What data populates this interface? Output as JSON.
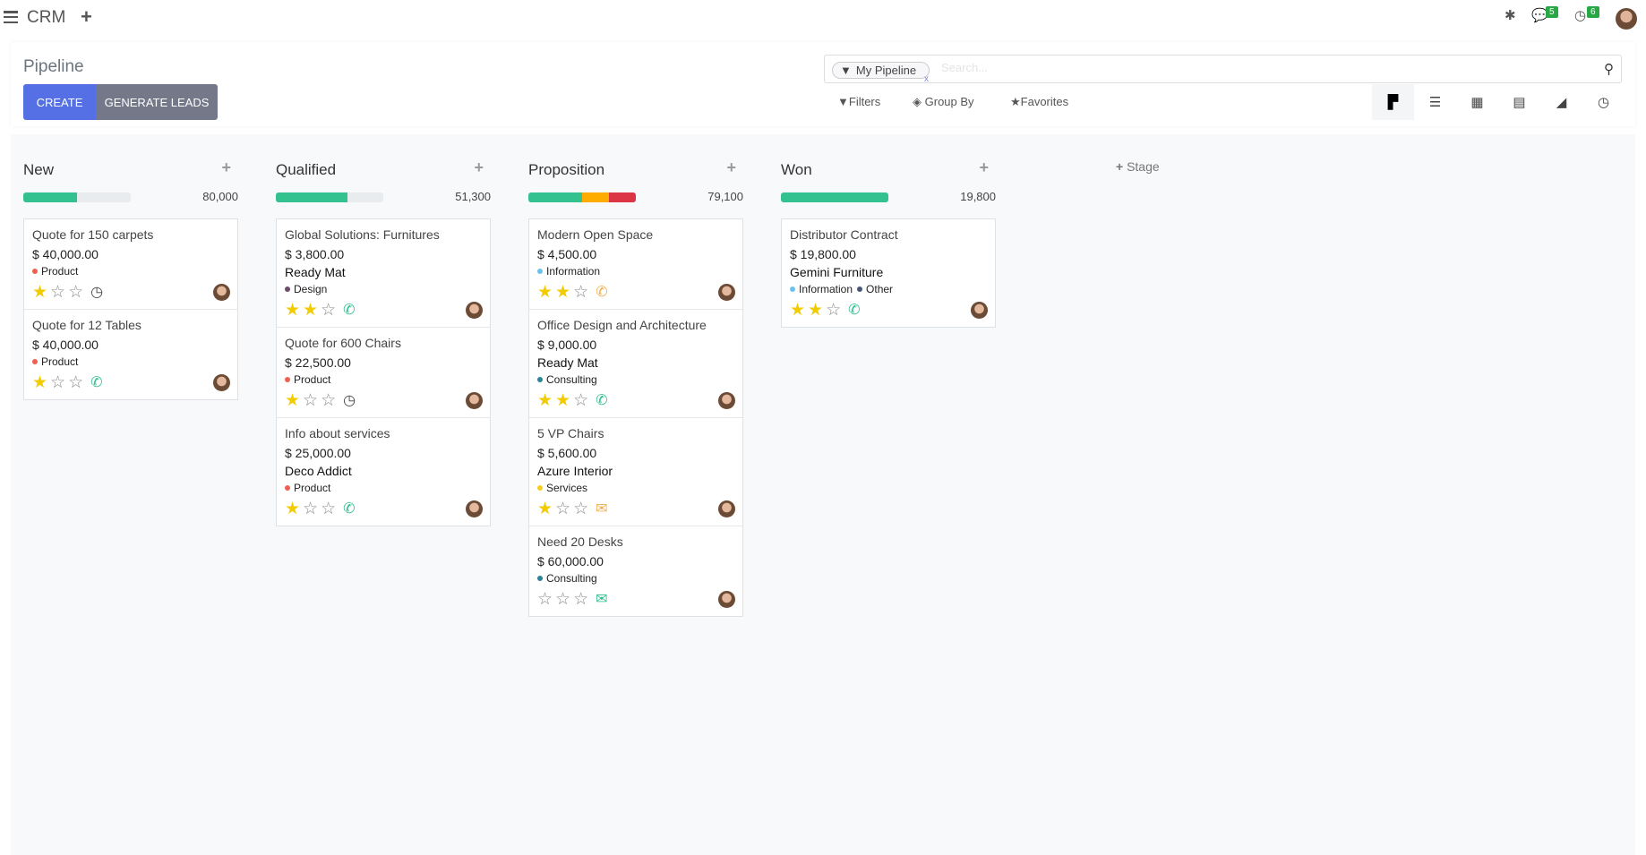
{
  "topbar": {
    "app_name": "CRM",
    "new_icon": "plus-icon",
    "bug_icon": "bug-icon",
    "messages_count": "5",
    "activities_count": "6"
  },
  "control": {
    "title": "Pipeline",
    "create_label": "CREATE",
    "generate_label": "GENERATE LEADS",
    "facet": "My Pipeline",
    "facet_remove": "x",
    "search_placeholder": "Search...",
    "filters": "Filters",
    "group_by": "Group By",
    "favorites": "Favorites",
    "views": [
      "kanban",
      "list",
      "calendar",
      "pivot",
      "graph",
      "activity"
    ],
    "active_view": "kanban"
  },
  "colors": {
    "green": "#33c28f",
    "orange": "#ffac00",
    "red": "#dc3545",
    "primary": "#5470e4"
  },
  "columns": [
    {
      "title": "New",
      "sum": "80,000",
      "progress": [
        {
          "color": "#33c28f",
          "pct": 50
        }
      ],
      "cards": [
        {
          "name": "Quote for 150 carpets",
          "amount": "$ 40,000.00",
          "company": "",
          "tags": [
            {
              "label": "Product",
              "color": "#f06050"
            }
          ],
          "stars": 1,
          "activity": "clock"
        },
        {
          "name": "Quote for 12 Tables",
          "amount": "$ 40,000.00",
          "company": "",
          "tags": [
            {
              "label": "Product",
              "color": "#f06050"
            }
          ],
          "stars": 1,
          "activity": "phone-green"
        }
      ]
    },
    {
      "title": "Qualified",
      "sum": "51,300",
      "progress": [
        {
          "color": "#33c28f",
          "pct": 67
        }
      ],
      "cards": [
        {
          "name": "Global Solutions: Furnitures",
          "amount": "$ 3,800.00",
          "company": "Ready Mat",
          "tags": [
            {
              "label": "Design",
              "color": "#6c4b6b"
            }
          ],
          "stars": 2,
          "activity": "phone-green"
        },
        {
          "name": "Quote for 600 Chairs",
          "amount": "$ 22,500.00",
          "company": "",
          "tags": [
            {
              "label": "Product",
              "color": "#f06050"
            }
          ],
          "stars": 1,
          "activity": "clock"
        },
        {
          "name": "Info about services",
          "amount": "$ 25,000.00",
          "company": "Deco Addict",
          "tags": [
            {
              "label": "Product",
              "color": "#f06050"
            }
          ],
          "stars": 1,
          "activity": "phone-green"
        }
      ]
    },
    {
      "title": "Proposition",
      "sum": "79,100",
      "progress": [
        {
          "color": "#33c28f",
          "pct": 50
        },
        {
          "color": "#ffac00",
          "pct": 25
        },
        {
          "color": "#dc3545",
          "pct": 25
        }
      ],
      "cards": [
        {
          "name": "Modern Open Space",
          "amount": "$ 4,500.00",
          "company": "",
          "tags": [
            {
              "label": "Information",
              "color": "#6cc1ed"
            }
          ],
          "stars": 2,
          "activity": "phone-orange"
        },
        {
          "name": "Office Design and Architecture",
          "amount": "$ 9,000.00",
          "company": "Ready Mat",
          "tags": [
            {
              "label": "Consulting",
              "color": "#2c8397"
            }
          ],
          "stars": 2,
          "activity": "phone-green"
        },
        {
          "name": "5 VP Chairs",
          "amount": "$ 5,600.00",
          "company": "Azure Interior",
          "tags": [
            {
              "label": "Services",
              "color": "#f7cd1f"
            }
          ],
          "stars": 1,
          "activity": "mail-orange"
        },
        {
          "name": "Need 20 Desks",
          "amount": "$ 60,000.00",
          "company": "",
          "tags": [
            {
              "label": "Consulting",
              "color": "#2c8397"
            }
          ],
          "stars": 0,
          "activity": "mail-green"
        }
      ]
    },
    {
      "title": "Won",
      "sum": "19,800",
      "progress": [
        {
          "color": "#33c28f",
          "pct": 100
        }
      ],
      "cards": [
        {
          "name": "Distributor Contract",
          "amount": "$ 19,800.00",
          "company": "Gemini Furniture",
          "tags": [
            {
              "label": "Information",
              "color": "#6cc1ed"
            },
            {
              "label": "Other",
              "color": "#475577"
            }
          ],
          "stars": 2,
          "activity": "phone-green"
        }
      ]
    }
  ],
  "add_stage": "Stage"
}
